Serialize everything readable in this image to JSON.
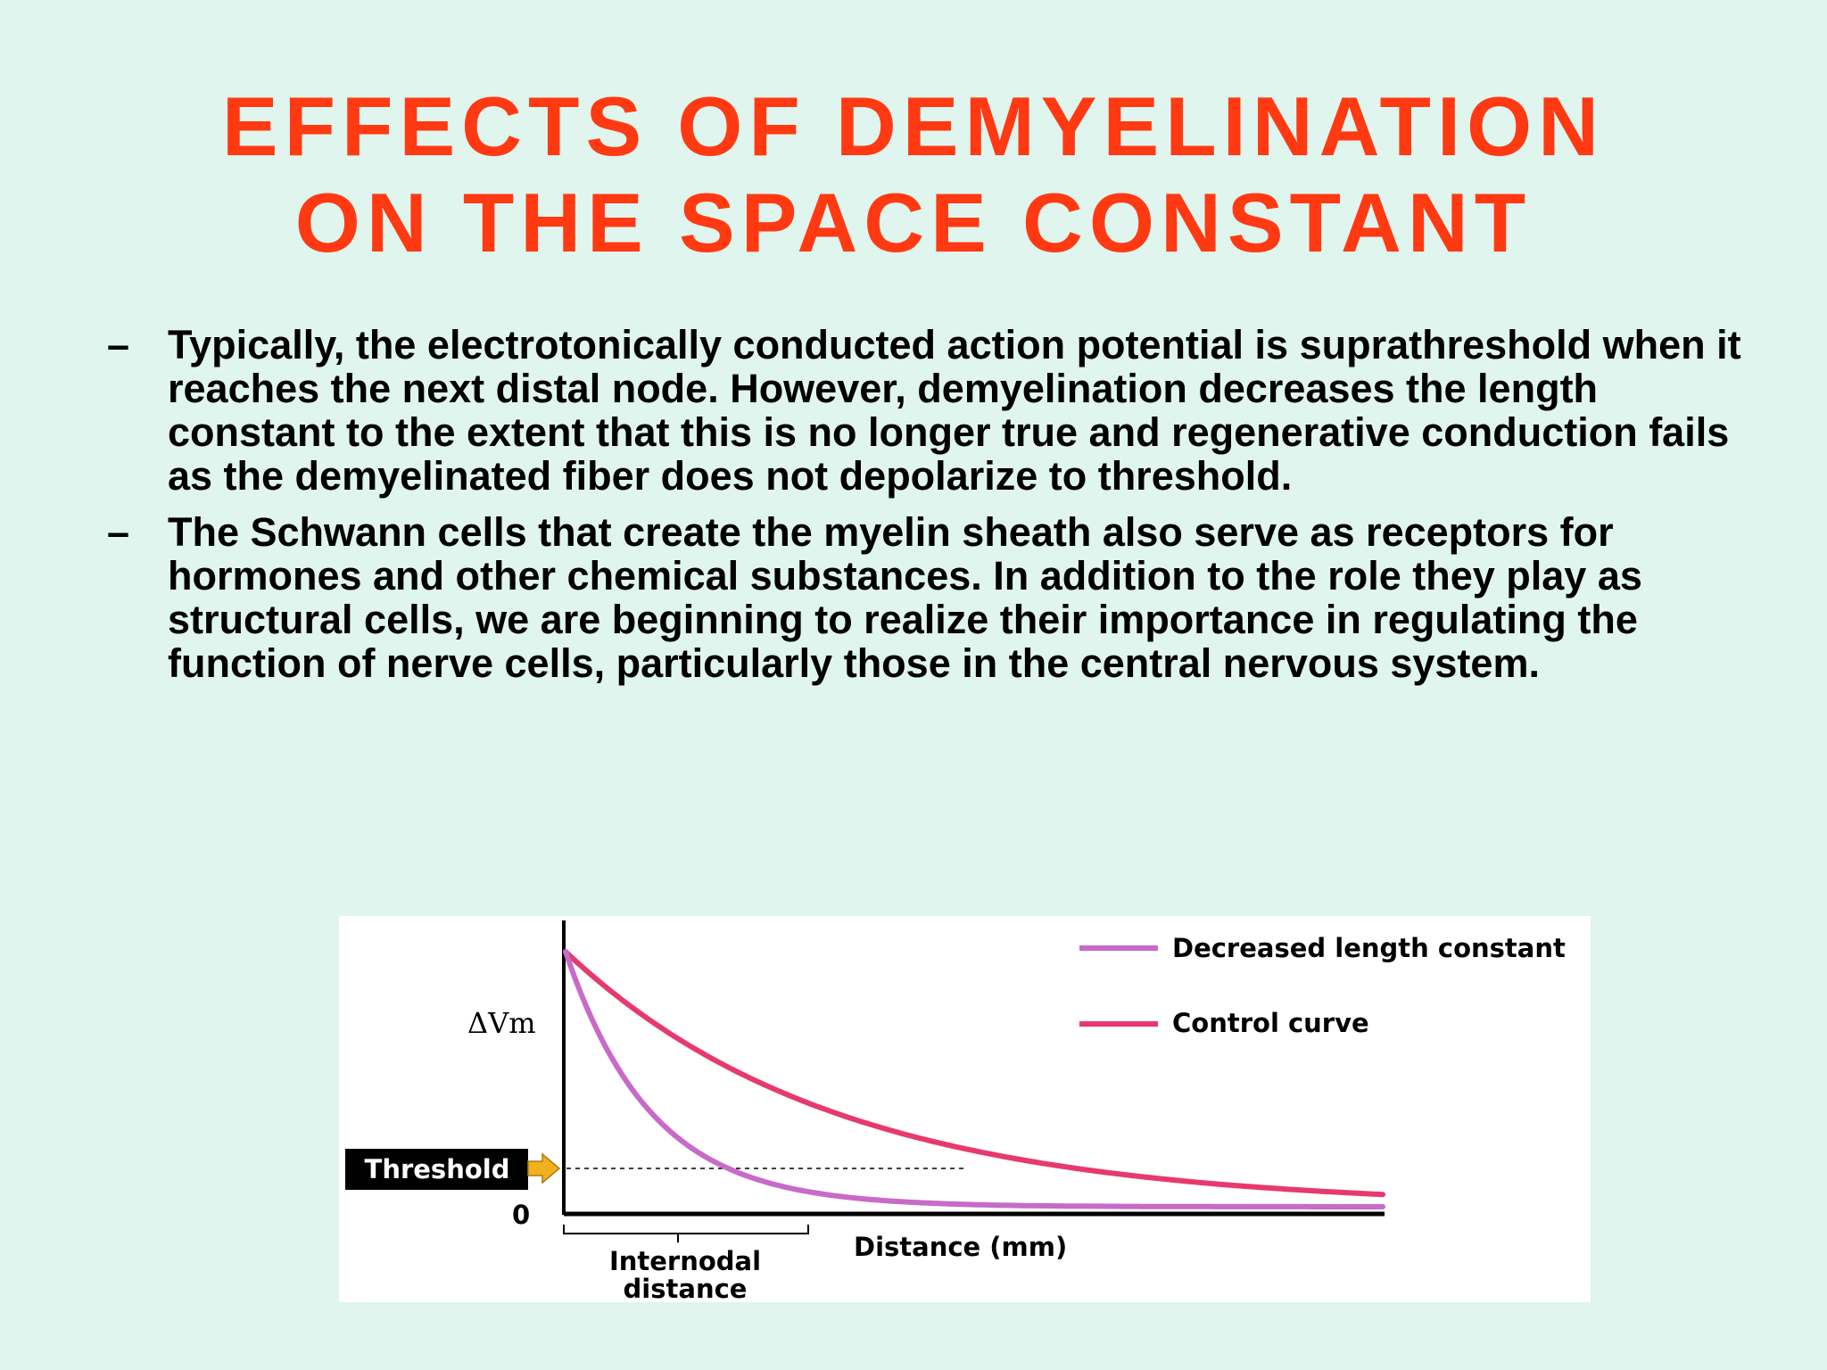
{
  "slide": {
    "title_line1": "EFFECTS OF DEMYELINATION",
    "title_line2": "ON THE SPACE CONSTANT",
    "bullet_marker": "–",
    "bullets": [
      "Typically, the electrotonically conducted action potential is suprathreshold when it reaches the next distal node. However, demyelination decreases the length constant to the extent that this is no longer true and regenerative conduction fails as the demyelinated fiber does not depolarize to threshold.",
      "The Schwann cells that create the myelin sheath also serve as receptors for hormones and other chemical substances. In addition to the role they play as structural cells, we are beginning to realize their importance in regulating the function of nerve cells, particularly those in the central nervous system."
    ],
    "title_color": "#ff3a12",
    "background_color": "#dff5ee"
  },
  "figure": {
    "y_axis_label": "ΔVm",
    "threshold_label": "Threshold",
    "zero_label": "0",
    "x_axis_label": "Distance (mm)",
    "internodal_label_line1": "Internodal",
    "internodal_label_line2": "distance",
    "legend": [
      {
        "label": "Decreased length constant",
        "color": "#c86ac8"
      },
      {
        "label": "Control curve",
        "color": "#e8396e"
      }
    ],
    "threshold_arrow_color": "#f0b020",
    "curves": {
      "control": {
        "initial": 1.0,
        "decay": 0.33,
        "threshold_crossing_fraction": 0.49
      },
      "decreased": {
        "initial": 1.0,
        "decay": 0.105,
        "threshold_crossing_fraction": 0.2
      }
    },
    "threshold_level": 0.163
  }
}
